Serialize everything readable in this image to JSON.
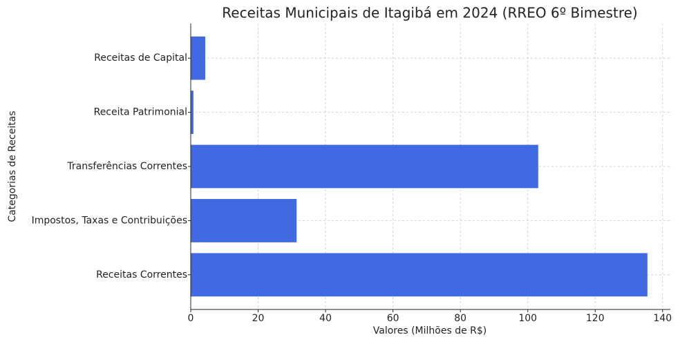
{
  "chart_data": {
    "type": "barh",
    "title": "Receitas Municipais de Itagibá em 2024 (RREO 6º Bimestre)",
    "x_label": "Valores (Milhões de R$)",
    "y_label": "Categorias de Receitas",
    "categories": [
      "Receitas Correntes",
      "Impostos, Taxas e Contribuições",
      "Transferências Correntes",
      "Receita Patrimonial",
      "Receitas de Capital"
    ],
    "values": [
      135.5,
      31.4,
      103.1,
      0.8,
      4.3
    ],
    "color": "#4169e1",
    "xlim": [
      0,
      142.3
    ],
    "xticks": [
      0,
      20,
      40,
      60,
      80,
      100,
      120,
      140
    ],
    "grid": true
  }
}
